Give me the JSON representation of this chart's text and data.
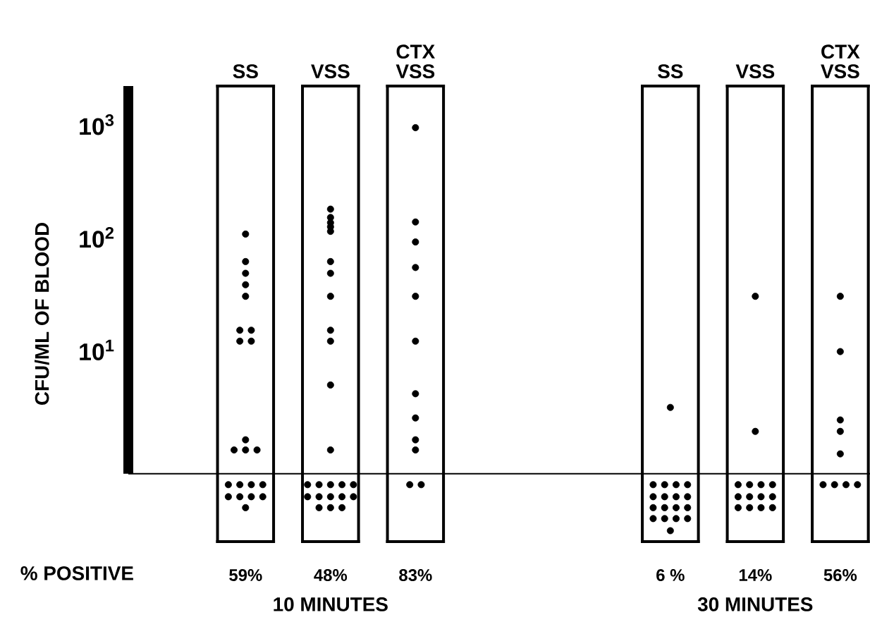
{
  "chart_data": {
    "type": "scatter",
    "ylabel": "CFU/ML OF BLOOD",
    "log": "y",
    "marker": "circle",
    "categories": [
      "SS",
      "VSS",
      "CTX VSS",
      null,
      null,
      "SS",
      "VSS",
      "CTX VSS"
    ],
    "ylim": [
      0.2,
      2200
    ],
    "yticks": [
      {
        "value": 10,
        "label": "10$^{1}$"
      },
      {
        "value": 100,
        "label": "10$^{2}$"
      },
      {
        "value": 1000,
        "label": "10$^{3}$"
      }
    ],
    "ref_lines": [
      {
        "axis": "y",
        "value": 0.8
      }
    ],
    "series": [
      {
        "color": "#000000",
        "values": [
          107,
          178,
          940,
          null,
          null,
          3.1,
          30,
          30
        ]
      },
      {
        "color": "#000000",
        "values": [
          61,
          150,
          137,
          null,
          null,
          0.64,
          1.9,
          9.7
        ]
      },
      {
        "color": "#000000",
        "values": [
          48,
          135,
          91,
          null,
          null,
          0.64,
          0.64,
          2.4
        ]
      },
      {
        "color": "#000000",
        "values": [
          38,
          124,
          54,
          null,
          null,
          0.64,
          0.64,
          1.9
        ]
      },
      {
        "color": "#000000",
        "values": [
          30,
          113,
          30,
          null,
          null,
          0.64,
          0.64,
          1.2
        ]
      },
      {
        "color": "#000000",
        "values": [
          15,
          61,
          12,
          null,
          null,
          0.5,
          0.64,
          0.64
        ]
      },
      {
        "color": "#000000",
        "values": [
          15,
          48,
          4.1,
          null,
          null,
          0.5,
          0.5,
          0.64
        ]
      },
      {
        "color": "#000000",
        "values": [
          12,
          30,
          2.5,
          null,
          null,
          0.5,
          0.5,
          0.64
        ]
      },
      {
        "color": "#000000",
        "values": [
          12,
          15,
          1.6,
          null,
          null,
          0.5,
          0.5,
          0.64
        ]
      },
      {
        "color": "#000000",
        "values": [
          1.6,
          12,
          1.3,
          null,
          null,
          0.4,
          0.5,
          null
        ]
      },
      {
        "color": "#000000",
        "values": [
          1.3,
          4.9,
          0.64,
          null,
          null,
          0.4,
          0.4,
          null
        ]
      },
      {
        "color": "#000000",
        "values": [
          1.3,
          1.3,
          0.64,
          null,
          null,
          0.4,
          0.4,
          null
        ]
      },
      {
        "color": "#000000",
        "values": [
          1.3,
          0.64,
          null,
          null,
          null,
          0.4,
          0.4,
          null
        ]
      },
      {
        "color": "#000000",
        "values": [
          0.64,
          0.64,
          null,
          null,
          null,
          0.32,
          0.4,
          null
        ]
      },
      {
        "color": "#000000",
        "values": [
          0.64,
          0.64,
          null,
          null,
          null,
          0.32,
          null,
          null
        ]
      },
      {
        "color": "#000000",
        "values": [
          0.64,
          0.64,
          null,
          null,
          null,
          0.32,
          null,
          null
        ]
      },
      {
        "color": "#000000",
        "values": [
          0.64,
          0.64,
          null,
          null,
          null,
          0.32,
          null,
          null
        ]
      },
      {
        "color": "#000000",
        "values": [
          0.5,
          0.5,
          null,
          null,
          null,
          0.25,
          null,
          null
        ]
      },
      {
        "color": "#000000",
        "values": [
          0.5,
          0.5,
          null,
          null,
          null,
          null,
          null,
          null
        ]
      },
      {
        "color": "#000000",
        "values": [
          0.5,
          0.5,
          null,
          null,
          null,
          null,
          null,
          null
        ]
      },
      {
        "color": "#000000",
        "values": [
          0.5,
          0.5,
          null,
          null,
          null,
          null,
          null,
          null
        ]
      },
      {
        "color": "#000000",
        "values": [
          0.4,
          0.5,
          null,
          null,
          null,
          null,
          null,
          null
        ]
      },
      {
        "color": "#000000",
        "values": [
          null,
          0.4,
          null,
          null,
          null,
          null,
          null,
          null
        ]
      },
      {
        "color": "#000000",
        "values": [
          null,
          0.4,
          null,
          null,
          null,
          null,
          null,
          null
        ]
      },
      {
        "color": "#000000",
        "values": [
          null,
          0.4,
          null,
          null,
          null,
          null,
          null,
          null
        ]
      }
    ],
    "annotations": [
      "% POSITIVE",
      "59%",
      "48%",
      "83%",
      "6 %",
      "14%",
      "56%",
      "10 MINUTES",
      "30 MINUTES"
    ]
  }
}
